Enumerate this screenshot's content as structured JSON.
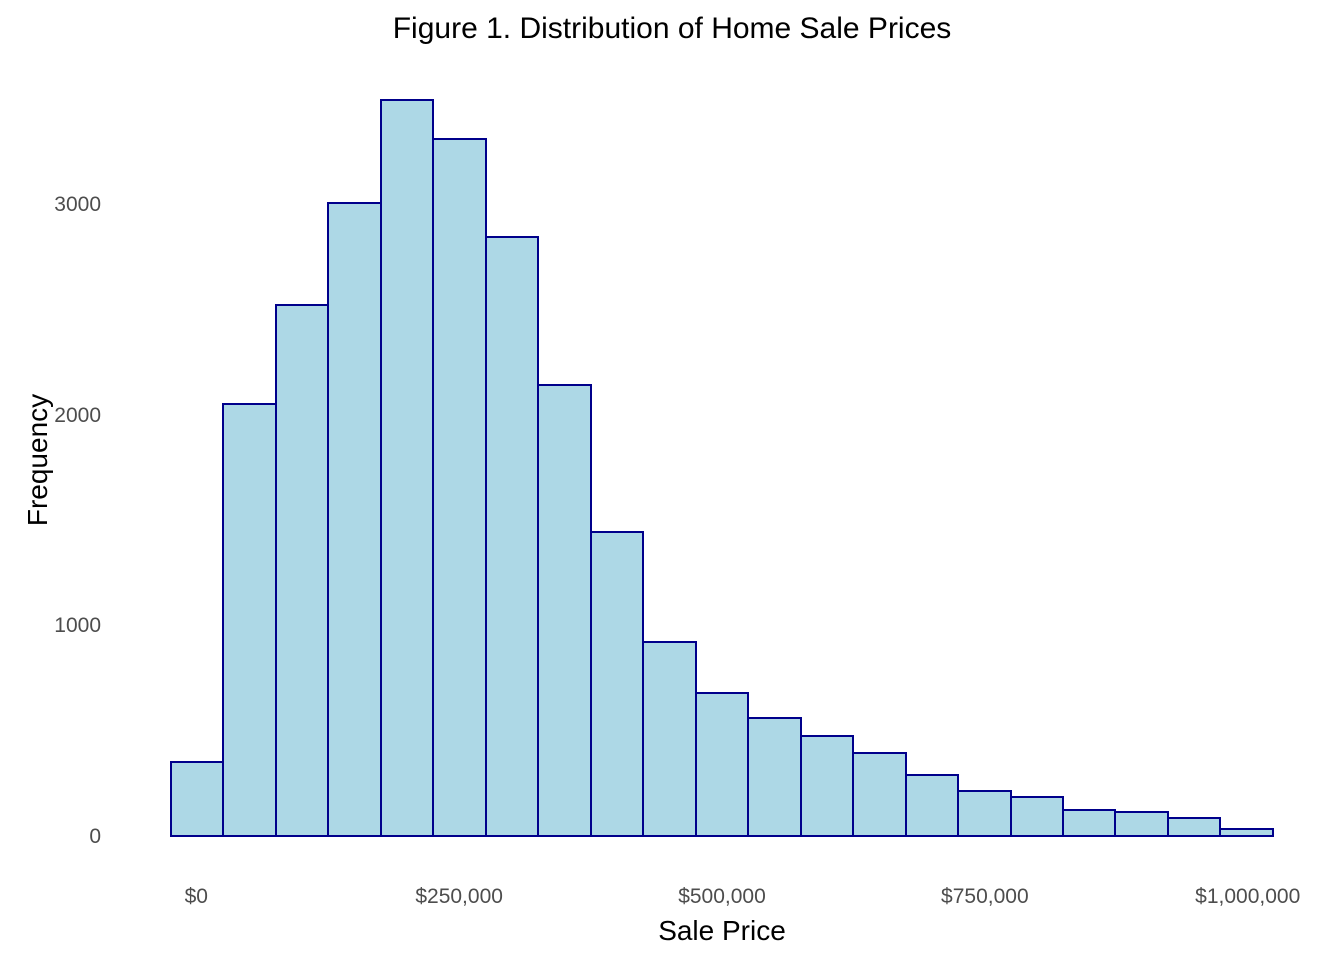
{
  "chart_data": {
    "type": "bar",
    "subtype": "histogram",
    "title": "Figure 1. Distribution of Home Sale Prices",
    "xlabel": "Sale Price",
    "ylabel": "Frequency",
    "bin_width": 50000,
    "bin_centers": [
      0,
      50000,
      100000,
      150000,
      200000,
      250000,
      300000,
      350000,
      400000,
      450000,
      500000,
      550000,
      600000,
      650000,
      700000,
      750000,
      800000,
      850000,
      900000,
      950000,
      1000000
    ],
    "values": [
      360,
      2060,
      2530,
      3015,
      3505,
      3320,
      2855,
      2150,
      1455,
      930,
      690,
      570,
      485,
      405,
      300,
      225,
      195,
      135,
      125,
      95,
      45
    ],
    "x_ticks": [
      {
        "value": 0,
        "label": "$0"
      },
      {
        "value": 250000,
        "label": "$250,000"
      },
      {
        "value": 500000,
        "label": "$500,000"
      },
      {
        "value": 750000,
        "label": "$750,000"
      },
      {
        "value": 1000000,
        "label": "$1,000,000"
      }
    ],
    "y_ticks": [
      {
        "value": 0,
        "label": "0"
      },
      {
        "value": 1000,
        "label": "1000"
      },
      {
        "value": 2000,
        "label": "2000"
      },
      {
        "value": 3000,
        "label": "3000"
      }
    ],
    "xlim": [
      -25000,
      1025000
    ],
    "ylim": [
      0,
      3600
    ],
    "grid": false,
    "legend": false,
    "colors": {
      "bar_fill": "#ADD8E6",
      "bar_border": "#00008B",
      "tick_text": "#4D4D4D",
      "title_text": "#000000",
      "background": "#FFFFFF"
    }
  }
}
